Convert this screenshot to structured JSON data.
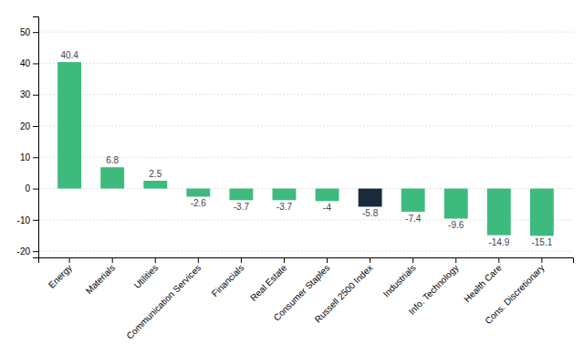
{
  "chart_data": {
    "type": "bar",
    "categories": [
      "Energy",
      "Materials",
      "Utilities",
      "Communication Services",
      "Financials",
      "Real Estate",
      "Consumer Staples",
      "Russell 2500 Index",
      "Industrials",
      "Info. Technology",
      "Health Care",
      "Cons. Discretionary"
    ],
    "values": [
      40.4,
      6.8,
      2.5,
      -2.6,
      -3.7,
      -3.7,
      -4.0,
      -5.8,
      -7.4,
      -9.6,
      -14.9,
      -15.1
    ],
    "colors": [
      "#3dba7e",
      "#3dba7e",
      "#3dba7e",
      "#3dba7e",
      "#3dba7e",
      "#3dba7e",
      "#3dba7e",
      "#1a2a3a",
      "#3dba7e",
      "#3dba7e",
      "#3dba7e",
      "#3dba7e"
    ],
    "ylim": [
      -22,
      55
    ],
    "yticks": [
      -20,
      -10,
      0,
      10,
      20,
      30,
      40,
      50
    ],
    "grid": true,
    "data_labels": true
  }
}
